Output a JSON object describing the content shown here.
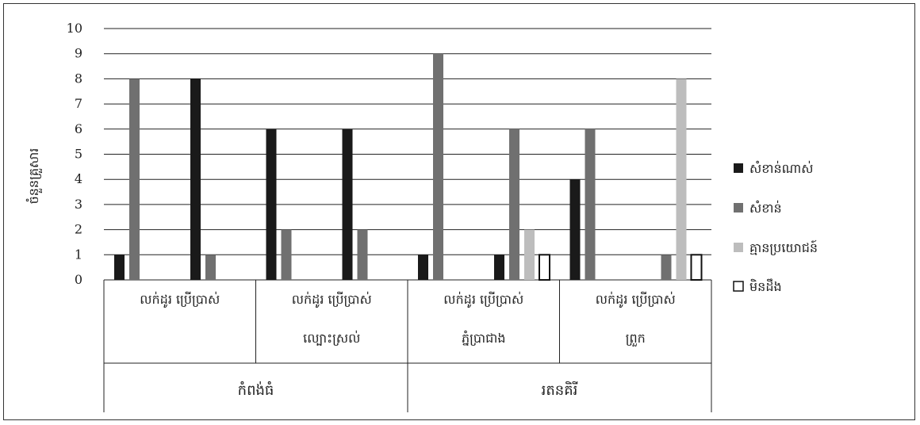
{
  "chart_data": {
    "type": "bar",
    "ylabel": "ចំនួនគ្រួសារ",
    "ylim": [
      0,
      10
    ],
    "yticks": [
      0,
      1,
      2,
      3,
      4,
      5,
      6,
      7,
      8,
      9,
      10
    ],
    "grid": true,
    "legend_position": "right",
    "groups": [
      {
        "label": "កំពង់ធំ",
        "categories": [
          {
            "label": "លក់ដូរ ប្រើប្រាស់",
            "sublabel": ""
          },
          {
            "label": "លក់ដូរ ប្រើប្រាស់",
            "sublabel": "ល្បោះស្រល់"
          }
        ]
      },
      {
        "label": "រតនគិរី",
        "categories": [
          {
            "label": "លក់ដូរ ប្រើប្រាស់",
            "sublabel": "ភ្នំប្រាជាង"
          },
          {
            "label": "លក់ដូរ ប្រើប្រាស់",
            "sublabel": "ព្រួក"
          }
        ]
      }
    ],
    "bars_per_category": [
      {
        "lak_dor": [
          1,
          8,
          0,
          0
        ],
        "prae_pras": [
          8,
          1,
          0,
          0
        ]
      },
      {
        "lak_dor": [
          6,
          2,
          0,
          0
        ],
        "prae_pras": [
          6,
          2,
          0,
          0
        ]
      },
      {
        "lak_dor": [
          1,
          9,
          0,
          0
        ],
        "prae_pras": [
          1,
          6,
          2,
          1
        ]
      },
      {
        "lak_dor": [
          4,
          6,
          0,
          0
        ],
        "prae_pras": [
          0,
          1,
          8,
          1
        ]
      }
    ],
    "series": [
      {
        "name": "សំខាន់ណាស់",
        "color": "#1a1a1a"
      },
      {
        "name": "សំខាន់",
        "color": "#707070"
      },
      {
        "name": "គ្មានប្រយោជន៍",
        "color": "#bdbdbd"
      },
      {
        "name": "មិនដឹង",
        "color": "#ffffff"
      }
    ]
  }
}
